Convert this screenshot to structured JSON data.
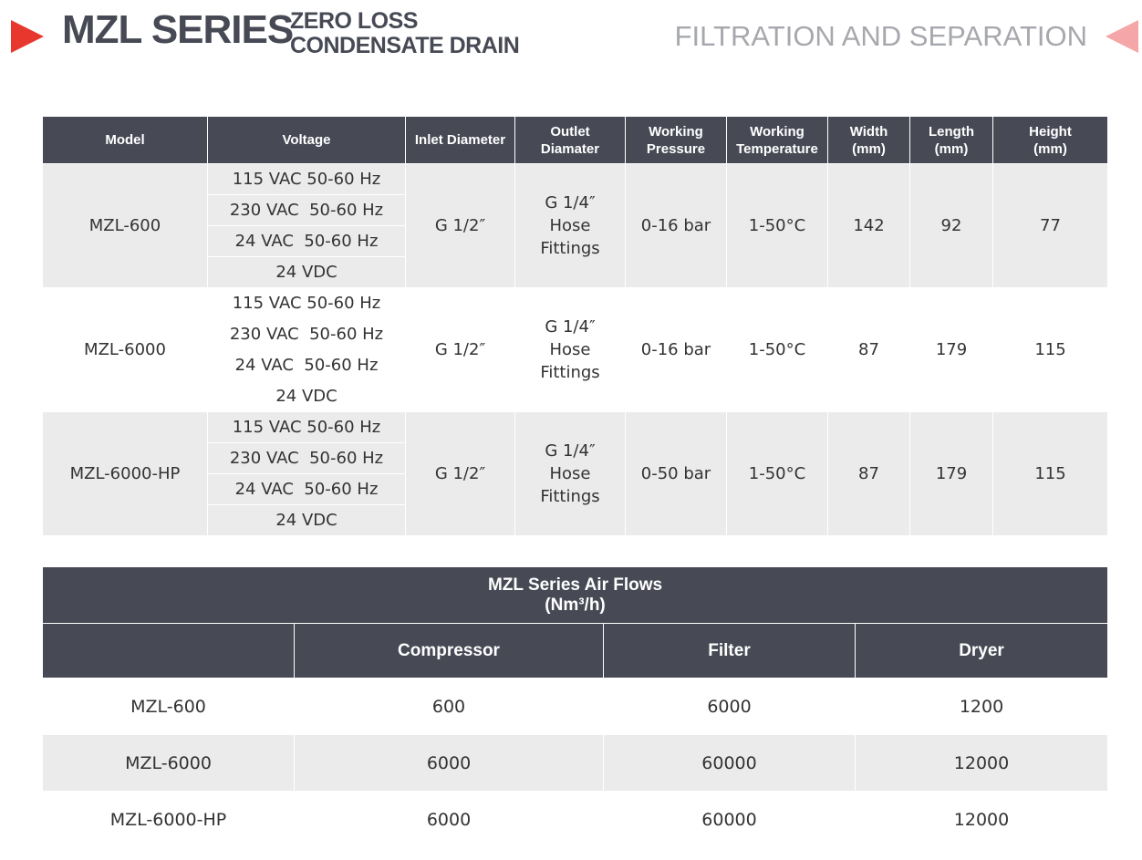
{
  "header": {
    "title": "MZL SERIES",
    "subtitle": [
      "ZERO LOSS",
      "CONDENSATE DRAIN"
    ],
    "section": "FILTRATION AND SEPARATION"
  },
  "specs_table": {
    "columns": [
      [
        "Model"
      ],
      [
        "Voltage"
      ],
      [
        "Inlet Diameter"
      ],
      [
        "Outlet",
        "Diamater"
      ],
      [
        "Working",
        "Pressure"
      ],
      [
        "Working",
        "Temperature"
      ],
      [
        "Width",
        "(mm)"
      ],
      [
        "Length",
        "(mm)"
      ],
      [
        "Height",
        "(mm)"
      ]
    ],
    "rows": [
      {
        "model": "MZL-600",
        "voltage": [
          "115 VAC 50-60 Hz",
          "230 VAC  50-60 Hz",
          "24 VAC  50-60 Hz",
          "24 VDC"
        ],
        "inlet": "G 1/2″",
        "outlet": [
          "G 1/4″",
          "Hose",
          "Fittings"
        ],
        "pressure": "0-16 bar",
        "temperature": "1-50°C",
        "width": 142,
        "length": 92,
        "height": 77
      },
      {
        "model": "MZL-6000",
        "voltage": [
          "115 VAC 50-60 Hz",
          "230 VAC  50-60 Hz",
          "24 VAC  50-60 Hz",
          "24 VDC"
        ],
        "inlet": "G 1/2″",
        "outlet": [
          "G 1/4″",
          "Hose",
          "Fittings"
        ],
        "pressure": "0-16 bar",
        "temperature": "1-50°C",
        "width": 87,
        "length": 179,
        "height": 115
      },
      {
        "model": "MZL-6000-HP",
        "voltage": [
          "115 VAC 50-60 Hz",
          "230 VAC  50-60 Hz",
          "24 VAC  50-60 Hz",
          "24 VDC"
        ],
        "inlet": "G 1/2″",
        "outlet": [
          "G 1/4″",
          "Hose",
          "Fittings"
        ],
        "pressure": "0-50 bar",
        "temperature": "1-50°C",
        "width": 87,
        "length": 179,
        "height": 115
      }
    ]
  },
  "airflow_table": {
    "title": [
      "MZL Series Air Flows",
      "(Nm³/h)"
    ],
    "columns": [
      "Compressor",
      "Filter",
      "Dryer"
    ],
    "rows": [
      [
        "MZL-600",
        600,
        6000,
        1200
      ],
      [
        "MZL-6000",
        6000,
        60000,
        12000
      ],
      [
        "MZL-6000-HP",
        6000,
        60000,
        12000
      ]
    ]
  }
}
